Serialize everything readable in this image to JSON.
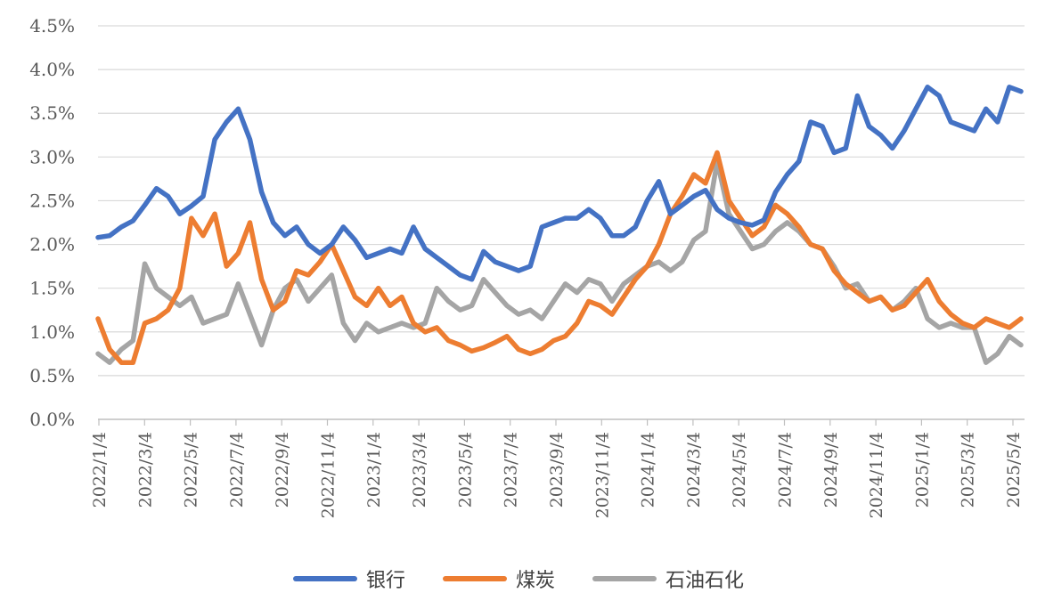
{
  "chart_data": {
    "type": "line",
    "title": "",
    "xlabel": "",
    "ylabel": "",
    "ylim": [
      0,
      4.5
    ],
    "y_ticks": [
      "0.0%",
      "0.5%",
      "1.0%",
      "1.5%",
      "2.0%",
      "2.5%",
      "3.0%",
      "3.5%",
      "4.0%",
      "4.5%"
    ],
    "x_ticks": [
      "2022/1/4",
      "2022/3/4",
      "2022/5/4",
      "2022/7/4",
      "2022/9/4",
      "2022/11/4",
      "2023/1/4",
      "2023/3/4",
      "2023/5/4",
      "2023/7/4",
      "2023/9/4",
      "2023/11/4",
      "2024/1/4",
      "2024/3/4",
      "2024/5/4",
      "2024/7/4",
      "2024/9/4",
      "2024/11/4",
      "2025/1/4",
      "2025/3/4",
      "2025/5/4"
    ],
    "grid": "horizontal",
    "legend": "bottom-center",
    "series": [
      {
        "name": "银行",
        "color": "#4472C4",
        "values": [
          2.08,
          2.1,
          2.2,
          2.27,
          2.45,
          2.64,
          2.55,
          2.35,
          2.44,
          2.55,
          3.2,
          3.4,
          3.55,
          3.2,
          2.6,
          2.25,
          2.1,
          2.2,
          2.0,
          1.9,
          2.0,
          2.2,
          2.05,
          1.85,
          1.9,
          1.95,
          1.9,
          2.2,
          1.95,
          1.85,
          1.75,
          1.65,
          1.6,
          1.92,
          1.8,
          1.75,
          1.7,
          1.75,
          2.2,
          2.25,
          2.3,
          2.3,
          2.4,
          2.3,
          2.1,
          2.1,
          2.2,
          2.5,
          2.72,
          2.35,
          2.45,
          2.55,
          2.62,
          2.4,
          2.3,
          2.25,
          2.22,
          2.28,
          2.6,
          2.8,
          2.95,
          3.4,
          3.35,
          3.05,
          3.1,
          3.7,
          3.35,
          3.25,
          3.1,
          3.3,
          3.55,
          3.8,
          3.7,
          3.4,
          3.35,
          3.3,
          3.55,
          3.4,
          3.8,
          3.75
        ]
      },
      {
        "name": "煤炭",
        "color": "#ED7D31",
        "values": [
          1.15,
          0.8,
          0.65,
          0.65,
          1.1,
          1.15,
          1.25,
          1.5,
          2.3,
          2.1,
          2.35,
          1.75,
          1.9,
          2.25,
          1.6,
          1.25,
          1.35,
          1.7,
          1.65,
          1.8,
          2.0,
          1.7,
          1.4,
          1.3,
          1.5,
          1.3,
          1.4,
          1.1,
          1.0,
          1.05,
          0.9,
          0.85,
          0.78,
          0.82,
          0.88,
          0.95,
          0.8,
          0.75,
          0.8,
          0.9,
          0.95,
          1.1,
          1.35,
          1.3,
          1.2,
          1.4,
          1.6,
          1.75,
          2.0,
          2.35,
          2.55,
          2.8,
          2.7,
          3.05,
          2.5,
          2.3,
          2.1,
          2.2,
          2.45,
          2.35,
          2.2,
          2.0,
          1.95,
          1.7,
          1.55,
          1.45,
          1.35,
          1.4,
          1.25,
          1.3,
          1.45,
          1.6,
          1.35,
          1.2,
          1.1,
          1.05,
          1.15,
          1.1,
          1.05,
          1.15
        ]
      },
      {
        "name": "石油石化",
        "color": "#A5A5A5",
        "values": [
          0.75,
          0.65,
          0.8,
          0.9,
          1.78,
          1.5,
          1.4,
          1.3,
          1.4,
          1.1,
          1.15,
          1.2,
          1.55,
          1.2,
          0.85,
          1.25,
          1.5,
          1.6,
          1.35,
          1.5,
          1.65,
          1.1,
          0.9,
          1.1,
          1.0,
          1.05,
          1.1,
          1.05,
          1.1,
          1.5,
          1.35,
          1.25,
          1.3,
          1.6,
          1.45,
          1.3,
          1.2,
          1.25,
          1.15,
          1.35,
          1.55,
          1.45,
          1.6,
          1.55,
          1.35,
          1.55,
          1.65,
          1.75,
          1.8,
          1.7,
          1.8,
          2.05,
          2.15,
          2.95,
          2.35,
          2.15,
          1.95,
          2.0,
          2.15,
          2.25,
          2.15,
          2.0,
          1.95,
          1.75,
          1.5,
          1.55,
          1.35,
          1.4,
          1.25,
          1.35,
          1.5,
          1.15,
          1.05,
          1.1,
          1.05,
          1.05,
          0.65,
          0.75,
          0.95,
          0.85
        ]
      }
    ]
  }
}
